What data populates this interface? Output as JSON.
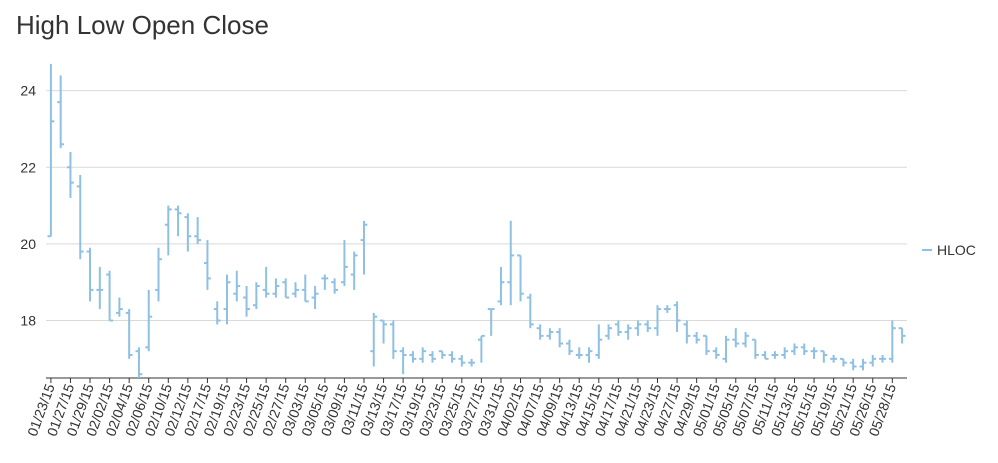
{
  "chart_data": {
    "type": "hloc",
    "title": "High Low Open Close",
    "xlabel": "",
    "ylabel": "",
    "ylim": [
      16.5,
      24.8
    ],
    "y_ticks": [
      18,
      20,
      22,
      24
    ],
    "grid": true,
    "legend": "right",
    "color": "#8ec0e4",
    "series": [
      {
        "name": "HLOC",
        "points": [
          {
            "x": "01/23/15",
            "open": 20.2,
            "high": 24.7,
            "low": 20.2,
            "close": 23.2
          },
          {
            "x": "01/26/15",
            "open": 23.7,
            "high": 24.4,
            "low": 22.5,
            "close": 22.6
          },
          {
            "x": "01/27/15",
            "open": 22.0,
            "high": 22.4,
            "low": 21.2,
            "close": 21.6
          },
          {
            "x": "01/28/15",
            "open": 21.5,
            "high": 21.8,
            "low": 19.6,
            "close": 19.8
          },
          {
            "x": "01/29/15",
            "open": 19.8,
            "high": 19.9,
            "low": 18.5,
            "close": 18.8
          },
          {
            "x": "01/30/15",
            "open": 18.8,
            "high": 19.4,
            "low": 18.3,
            "close": 18.8
          },
          {
            "x": "02/02/15",
            "open": 19.2,
            "high": 19.3,
            "low": 18.0,
            "close": 18.0
          },
          {
            "x": "02/03/15",
            "open": 18.2,
            "high": 18.6,
            "low": 18.1,
            "close": 18.3
          },
          {
            "x": "02/04/15",
            "open": 18.2,
            "high": 18.3,
            "low": 17.0,
            "close": 17.1
          },
          {
            "x": "02/05/15",
            "open": 17.2,
            "high": 17.3,
            "low": 16.5,
            "close": 16.6
          },
          {
            "x": "02/06/15",
            "open": 17.3,
            "high": 18.8,
            "low": 17.2,
            "close": 18.1
          },
          {
            "x": "02/09/15",
            "open": 18.8,
            "high": 19.9,
            "low": 18.5,
            "close": 19.6
          },
          {
            "x": "02/10/15",
            "open": 20.5,
            "high": 21.0,
            "low": 19.7,
            "close": 20.9
          },
          {
            "x": "02/11/15",
            "open": 20.9,
            "high": 21.0,
            "low": 20.2,
            "close": 20.8
          },
          {
            "x": "02/12/15",
            "open": 20.7,
            "high": 20.8,
            "low": 19.8,
            "close": 20.2
          },
          {
            "x": "02/13/15",
            "open": 20.2,
            "high": 20.7,
            "low": 20.0,
            "close": 20.1
          },
          {
            "x": "02/17/15",
            "open": 19.5,
            "high": 20.1,
            "low": 18.8,
            "close": 19.1
          },
          {
            "x": "02/18/15",
            "open": 18.3,
            "high": 18.5,
            "low": 17.9,
            "close": 18.0
          },
          {
            "x": "02/19/15",
            "open": 18.3,
            "high": 19.2,
            "low": 17.9,
            "close": 19.0
          },
          {
            "x": "02/20/15",
            "open": 18.7,
            "high": 19.3,
            "low": 18.5,
            "close": 18.9
          },
          {
            "x": "02/23/15",
            "open": 18.6,
            "high": 18.9,
            "low": 18.1,
            "close": 18.3
          },
          {
            "x": "02/24/15",
            "open": 18.4,
            "high": 19.0,
            "low": 18.3,
            "close": 18.9
          },
          {
            "x": "02/25/15",
            "open": 18.8,
            "high": 19.4,
            "low": 18.6,
            "close": 18.7
          },
          {
            "x": "02/26/15",
            "open": 18.7,
            "high": 19.1,
            "low": 18.6,
            "close": 18.9
          },
          {
            "x": "02/27/15",
            "open": 19.0,
            "high": 19.1,
            "low": 18.6,
            "close": 18.6
          },
          {
            "x": "03/02/15",
            "open": 18.7,
            "high": 19.0,
            "low": 18.6,
            "close": 18.8
          },
          {
            "x": "03/03/15",
            "open": 18.8,
            "high": 19.2,
            "low": 18.5,
            "close": 18.5
          },
          {
            "x": "03/04/15",
            "open": 18.6,
            "high": 18.9,
            "low": 18.3,
            "close": 18.7
          },
          {
            "x": "03/05/15",
            "open": 19.1,
            "high": 19.2,
            "low": 18.8,
            "close": 19.1
          },
          {
            "x": "03/06/15",
            "open": 19.0,
            "high": 19.1,
            "low": 18.7,
            "close": 18.8
          },
          {
            "x": "03/09/15",
            "open": 19.0,
            "high": 20.1,
            "low": 18.9,
            "close": 19.4
          },
          {
            "x": "03/10/15",
            "open": 19.2,
            "high": 19.8,
            "low": 18.8,
            "close": 19.7
          },
          {
            "x": "03/11/15",
            "open": 20.1,
            "high": 20.6,
            "low": 19.2,
            "close": 20.5
          },
          {
            "x": "03/12/15",
            "open": 17.2,
            "high": 18.2,
            "low": 16.8,
            "close": 18.1
          },
          {
            "x": "03/13/15",
            "open": 18.0,
            "high": 18.0,
            "low": 17.4,
            "close": 17.9
          },
          {
            "x": "03/16/15",
            "open": 17.9,
            "high": 18.0,
            "low": 17.0,
            "close": 17.2
          },
          {
            "x": "03/17/15",
            "open": 17.2,
            "high": 17.3,
            "low": 16.6,
            "close": 17.1
          },
          {
            "x": "03/18/15",
            "open": 17.1,
            "high": 17.2,
            "low": 16.9,
            "close": 17.0
          },
          {
            "x": "03/19/15",
            "open": 17.0,
            "high": 17.3,
            "low": 16.9,
            "close": 17.2
          },
          {
            "x": "03/20/15",
            "open": 17.1,
            "high": 17.2,
            "low": 16.9,
            "close": 17.0
          },
          {
            "x": "03/23/15",
            "open": 17.2,
            "high": 17.2,
            "low": 17.0,
            "close": 17.1
          },
          {
            "x": "03/24/15",
            "open": 17.1,
            "high": 17.2,
            "low": 16.9,
            "close": 17.0
          },
          {
            "x": "03/25/15",
            "open": 17.0,
            "high": 17.1,
            "low": 16.8,
            "close": 16.9
          },
          {
            "x": "03/26/15",
            "open": 16.9,
            "high": 17.0,
            "low": 16.8,
            "close": 16.9
          },
          {
            "x": "03/27/15",
            "open": 17.5,
            "high": 17.6,
            "low": 16.9,
            "close": 17.6
          },
          {
            "x": "03/30/15",
            "open": 18.3,
            "high": 18.3,
            "low": 17.6,
            "close": 18.3
          },
          {
            "x": "03/31/15",
            "open": 18.5,
            "high": 19.4,
            "low": 18.4,
            "close": 19.0
          },
          {
            "x": "04/01/15",
            "open": 19.0,
            "high": 20.6,
            "low": 18.4,
            "close": 19.7
          },
          {
            "x": "04/02/15",
            "open": 19.7,
            "high": 19.7,
            "low": 18.5,
            "close": 18.7
          },
          {
            "x": "04/06/15",
            "open": 18.6,
            "high": 18.7,
            "low": 17.8,
            "close": 17.9
          },
          {
            "x": "04/07/15",
            "open": 17.8,
            "high": 17.9,
            "low": 17.5,
            "close": 17.6
          },
          {
            "x": "04/08/15",
            "open": 17.6,
            "high": 17.8,
            "low": 17.5,
            "close": 17.7
          },
          {
            "x": "04/09/15",
            "open": 17.7,
            "high": 17.8,
            "low": 17.3,
            "close": 17.4
          },
          {
            "x": "04/10/15",
            "open": 17.4,
            "high": 17.5,
            "low": 17.1,
            "close": 17.2
          },
          {
            "x": "04/13/15",
            "open": 17.1,
            "high": 17.3,
            "low": 17.0,
            "close": 17.1
          },
          {
            "x": "04/14/15",
            "open": 17.1,
            "high": 17.3,
            "low": 16.9,
            "close": 17.2
          },
          {
            "x": "04/15/15",
            "open": 17.1,
            "high": 17.9,
            "low": 17.0,
            "close": 17.5
          },
          {
            "x": "04/16/15",
            "open": 17.6,
            "high": 17.9,
            "low": 17.5,
            "close": 17.8
          },
          {
            "x": "04/17/15",
            "open": 17.9,
            "high": 18.0,
            "low": 17.6,
            "close": 17.7
          },
          {
            "x": "04/20/15",
            "open": 17.7,
            "high": 17.9,
            "low": 17.5,
            "close": 17.8
          },
          {
            "x": "04/21/15",
            "open": 17.8,
            "high": 18.0,
            "low": 17.6,
            "close": 17.9
          },
          {
            "x": "04/22/15",
            "open": 17.9,
            "high": 18.0,
            "low": 17.7,
            "close": 17.8
          },
          {
            "x": "04/23/15",
            "open": 17.8,
            "high": 18.4,
            "low": 17.6,
            "close": 18.3
          },
          {
            "x": "04/24/15",
            "open": 18.3,
            "high": 18.4,
            "low": 18.2,
            "close": 18.3
          },
          {
            "x": "04/27/15",
            "open": 18.4,
            "high": 18.5,
            "low": 17.7,
            "close": 18.0
          },
          {
            "x": "04/28/15",
            "open": 17.9,
            "high": 18.0,
            "low": 17.4,
            "close": 17.6
          },
          {
            "x": "04/29/15",
            "open": 17.6,
            "high": 17.7,
            "low": 17.4,
            "close": 17.5
          },
          {
            "x": "04/30/15",
            "open": 17.6,
            "high": 17.6,
            "low": 17.1,
            "close": 17.2
          },
          {
            "x": "05/01/15",
            "open": 17.2,
            "high": 17.3,
            "low": 17.0,
            "close": 17.1
          },
          {
            "x": "05/04/15",
            "open": 17.0,
            "high": 17.6,
            "low": 16.9,
            "close": 17.5
          },
          {
            "x": "05/05/15",
            "open": 17.5,
            "high": 17.8,
            "low": 17.3,
            "close": 17.4
          },
          {
            "x": "05/06/15",
            "open": 17.4,
            "high": 17.7,
            "low": 17.3,
            "close": 17.6
          },
          {
            "x": "05/07/15",
            "open": 17.5,
            "high": 17.5,
            "low": 17.0,
            "close": 17.1
          },
          {
            "x": "05/08/15",
            "open": 17.1,
            "high": 17.2,
            "low": 17.0,
            "close": 17.0
          },
          {
            "x": "05/11/15",
            "open": 17.1,
            "high": 17.2,
            "low": 17.0,
            "close": 17.1
          },
          {
            "x": "05/12/15",
            "open": 17.1,
            "high": 17.3,
            "low": 17.0,
            "close": 17.2
          },
          {
            "x": "05/13/15",
            "open": 17.2,
            "high": 17.4,
            "low": 17.1,
            "close": 17.3
          },
          {
            "x": "05/14/15",
            "open": 17.3,
            "high": 17.4,
            "low": 17.1,
            "close": 17.2
          },
          {
            "x": "05/15/15",
            "open": 17.2,
            "high": 17.3,
            "low": 17.0,
            "close": 17.2
          },
          {
            "x": "05/18/15",
            "open": 17.2,
            "high": 17.2,
            "low": 16.9,
            "close": 17.1
          },
          {
            "x": "05/19/15",
            "open": 17.0,
            "high": 17.1,
            "low": 16.9,
            "close": 17.0
          },
          {
            "x": "05/20/15",
            "open": 17.0,
            "high": 17.0,
            "low": 16.8,
            "close": 16.9
          },
          {
            "x": "05/21/15",
            "open": 16.9,
            "high": 17.0,
            "low": 16.7,
            "close": 16.8
          },
          {
            "x": "05/22/15",
            "open": 16.8,
            "high": 17.0,
            "low": 16.7,
            "close": 16.9
          },
          {
            "x": "05/26/15",
            "open": 16.9,
            "high": 17.1,
            "low": 16.8,
            "close": 17.0
          },
          {
            "x": "05/27/15",
            "open": 17.0,
            "high": 17.1,
            "low": 16.9,
            "close": 17.0
          },
          {
            "x": "05/28/15",
            "open": 17.0,
            "high": 18.0,
            "low": 16.9,
            "close": 17.8
          },
          {
            "x": "05/29/15",
            "open": 17.8,
            "high": 17.8,
            "low": 17.4,
            "close": 17.6
          }
        ]
      }
    ],
    "x_tick_labels": [
      "01/23/15",
      "01/27/15",
      "01/29/15",
      "02/02/15",
      "02/04/15",
      "02/06/15",
      "02/10/15",
      "02/12/15",
      "02/17/15",
      "02/19/15",
      "02/23/15",
      "02/25/15",
      "02/27/15",
      "03/03/15",
      "03/05/15",
      "03/09/15",
      "03/11/15",
      "03/13/15",
      "03/17/15",
      "03/19/15",
      "03/23/15",
      "03/25/15",
      "03/27/15",
      "03/31/15",
      "04/02/15",
      "04/07/15",
      "04/09/15",
      "04/13/15",
      "04/15/15",
      "04/17/15",
      "04/21/15",
      "04/23/15",
      "04/27/15",
      "04/29/15",
      "05/01/15",
      "05/05/15",
      "05/07/15",
      "05/11/15",
      "05/13/15",
      "05/15/15",
      "05/19/15",
      "05/21/15",
      "05/26/15",
      "05/28/15"
    ]
  }
}
